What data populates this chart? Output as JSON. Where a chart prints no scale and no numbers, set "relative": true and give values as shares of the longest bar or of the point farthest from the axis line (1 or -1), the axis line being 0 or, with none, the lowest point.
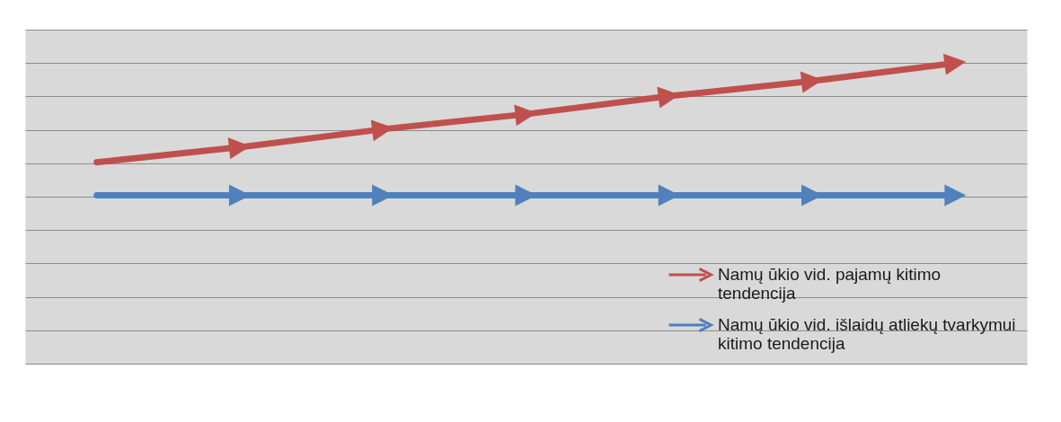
{
  "chart_data": {
    "type": "line",
    "relative": true,
    "categories": [
      null,
      null,
      null,
      null,
      null,
      null,
      null
    ],
    "series": [
      {
        "name": "Namų ūkio vid. pajamų kitimo tendencija",
        "color": "#c0504d",
        "values": [
          0.67,
          0.72,
          0.78,
          0.83,
          0.89,
          0.94,
          1
        ]
      },
      {
        "name": "Namų ūkio vid. išlaidų atliekų tvarkymui kitimo tendencija",
        "color": "#4f81bd",
        "values": [
          0.56,
          0.56,
          0.56,
          0.56,
          0.56,
          0.56,
          0.56
        ]
      }
    ],
    "grid": "y",
    "legend": "bottom right",
    "marker": "triangle",
    "line_style": "solid"
  }
}
